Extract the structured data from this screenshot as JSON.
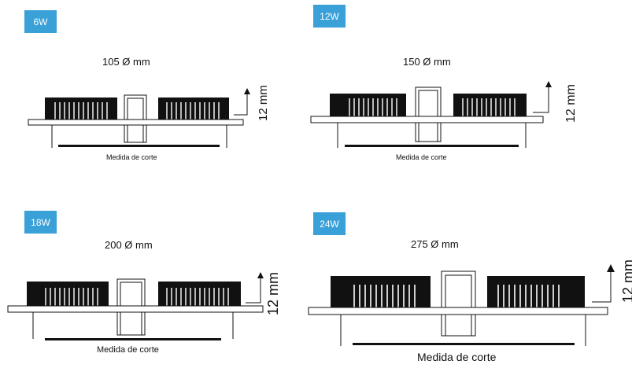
{
  "panels": [
    {
      "wattage": "6W",
      "diameter": "105 Ø mm",
      "height": "12 mm",
      "cut_label": "Medida de corte"
    },
    {
      "wattage": "12W",
      "diameter": "150 Ø mm",
      "height": "12 mm",
      "cut_label": "Medida de corte"
    },
    {
      "wattage": "18W",
      "diameter": "200 Ø mm",
      "height": "12 mm",
      "cut_label": "Medida de corte"
    },
    {
      "wattage": "24W",
      "diameter": "275 Ø mm",
      "height": "12 mm",
      "cut_label": "Medida de corte"
    }
  ],
  "colors": {
    "badge": "#3aa0d8",
    "lines": "#111111"
  }
}
